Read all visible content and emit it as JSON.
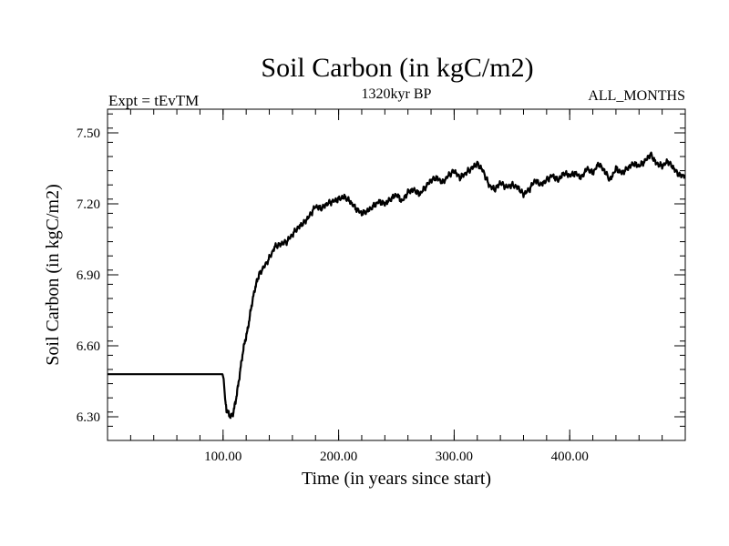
{
  "chart_data": {
    "type": "line",
    "title": "Soil Carbon (in kgC/m2)",
    "subtitle_left": "Expt = tEvTM",
    "subtitle_center": "1320kyr BP",
    "subtitle_right": "ALL_MONTHS",
    "xlabel": "Time (in years since start)",
    "ylabel": "Soil Carbon (in kgC/m2)",
    "xlim": [
      0,
      500
    ],
    "ylim": [
      6.2,
      7.6
    ],
    "xticks": [
      {
        "value": 100,
        "label": "100.00"
      },
      {
        "value": 200,
        "label": "200.00"
      },
      {
        "value": 300,
        "label": "300.00"
      },
      {
        "value": 400,
        "label": "400.00"
      }
    ],
    "yticks": [
      {
        "value": 6.3,
        "label": "6.30"
      },
      {
        "value": 6.6,
        "label": "6.60"
      },
      {
        "value": 6.9,
        "label": "6.90"
      },
      {
        "value": 7.2,
        "label": "7.20"
      },
      {
        "value": 7.5,
        "label": "7.50"
      }
    ],
    "line_color": "#000000",
    "series": [
      {
        "name": "Soil Carbon",
        "x": [
          0,
          99.5,
          100.5,
          101.5,
          103,
          105,
          107,
          109,
          111,
          113,
          115,
          117,
          119,
          121,
          123,
          125,
          128,
          131,
          135,
          140,
          145,
          150,
          155,
          160,
          165,
          170,
          175,
          180,
          185,
          190,
          195,
          200,
          205,
          210,
          215,
          220,
          225,
          230,
          235,
          240,
          245,
          250,
          255,
          260,
          265,
          270,
          275,
          280,
          285,
          290,
          295,
          300,
          305,
          310,
          315,
          320,
          325,
          330,
          335,
          340,
          345,
          350,
          355,
          360,
          365,
          370,
          375,
          380,
          385,
          390,
          395,
          400,
          405,
          410,
          415,
          420,
          425,
          430,
          435,
          440,
          445,
          450,
          455,
          460,
          465,
          470,
          475,
          480,
          485,
          490,
          495,
          500
        ],
        "y": [
          6.48,
          6.48,
          6.46,
          6.38,
          6.33,
          6.31,
          6.3,
          6.32,
          6.37,
          6.43,
          6.5,
          6.57,
          6.62,
          6.66,
          6.72,
          6.78,
          6.85,
          6.9,
          6.93,
          6.97,
          7.02,
          7.03,
          7.04,
          7.07,
          7.1,
          7.12,
          7.15,
          7.19,
          7.18,
          7.2,
          7.21,
          7.22,
          7.23,
          7.21,
          7.18,
          7.16,
          7.17,
          7.19,
          7.21,
          7.2,
          7.22,
          7.24,
          7.21,
          7.25,
          7.26,
          7.24,
          7.27,
          7.3,
          7.31,
          7.29,
          7.32,
          7.34,
          7.31,
          7.33,
          7.35,
          7.37,
          7.34,
          7.28,
          7.26,
          7.29,
          7.27,
          7.28,
          7.27,
          7.24,
          7.26,
          7.3,
          7.28,
          7.3,
          7.32,
          7.3,
          7.33,
          7.32,
          7.33,
          7.31,
          7.35,
          7.33,
          7.37,
          7.34,
          7.3,
          7.35,
          7.33,
          7.35,
          7.37,
          7.36,
          7.38,
          7.41,
          7.37,
          7.36,
          7.38,
          7.35,
          7.32,
          7.32
        ]
      }
    ]
  }
}
